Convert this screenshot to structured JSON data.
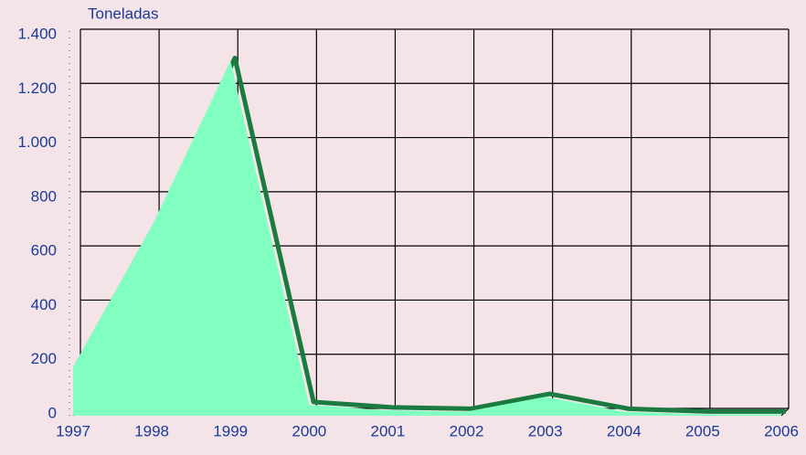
{
  "chart_data": {
    "type": "area",
    "y_label": "Toneladas",
    "x": [
      1997,
      1998,
      1999,
      2000,
      2001,
      2002,
      2003,
      2004,
      2005,
      2006
    ],
    "series": [
      {
        "color": "#80ffc0",
        "line_color": "#1a7a40",
        "values": [
          180,
          700,
          1310,
          40,
          20,
          15,
          70,
          15,
          5,
          5
        ]
      }
    ],
    "xlim": [
      1997,
      2006
    ],
    "xticks": [
      1997,
      1998,
      1999,
      2000,
      2001,
      2002,
      2003,
      2004,
      2005,
      2006
    ],
    "ylim": [
      0,
      1400
    ],
    "yticks": [
      0,
      200,
      400,
      600,
      800,
      {
        "value": 1000,
        "label": "1.000"
      },
      {
        "value": 1200,
        "label": "1.200"
      },
      {
        "value": 1400,
        "label": "1.400"
      }
    ],
    "grid": true
  }
}
